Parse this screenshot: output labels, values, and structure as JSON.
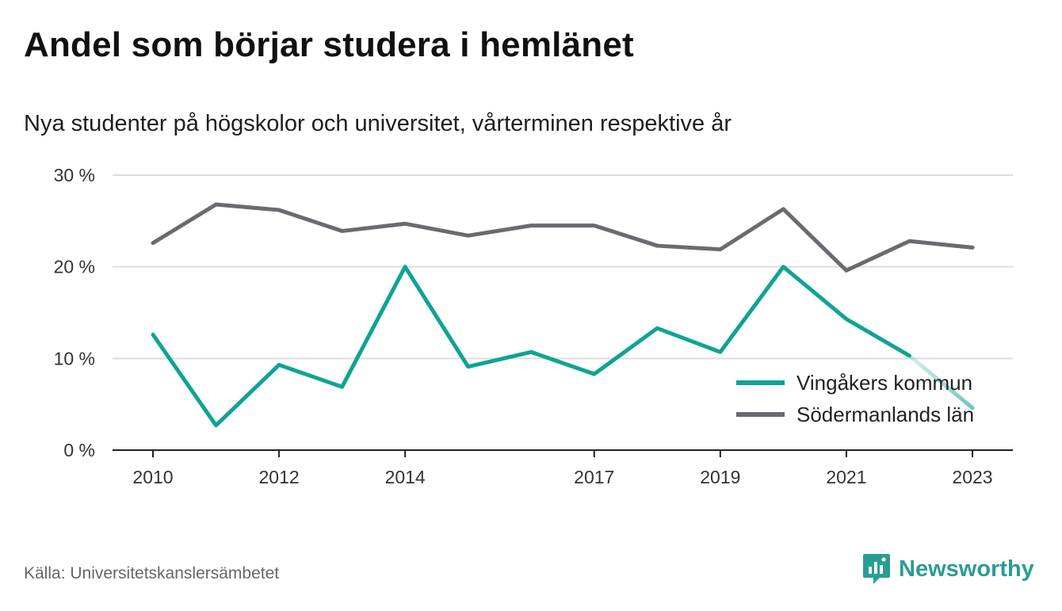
{
  "header": {
    "title": "Andel som börjar studera i hemlänet",
    "subtitle": "Nya studenter på högskolor och universitet, vårterminen respektive år"
  },
  "footer": {
    "source": "Källa: Universitetskanslersämbetet",
    "brand": "Newsworthy",
    "brand_icon": "newsworthy-logo-icon"
  },
  "colors": {
    "vingaker": "#0fa394",
    "sodermanland": "#6b6a70",
    "grid": "#dddddd",
    "axis": "#222222",
    "brand": "#2a9d92"
  },
  "chart_data": {
    "type": "line",
    "x": [
      2010,
      2011,
      2012,
      2013,
      2014,
      2015,
      2016,
      2017,
      2018,
      2019,
      2020,
      2021,
      2022,
      2023
    ],
    "x_tick_labels": [
      "2010",
      "2012",
      "2014",
      "2017",
      "2019",
      "2021",
      "2023"
    ],
    "y_ticks": [
      0,
      10,
      20,
      30
    ],
    "y_tick_labels": [
      "0 %",
      "10 %",
      "20 %",
      "30 %"
    ],
    "ylim": [
      0,
      30
    ],
    "grid": true,
    "legend_position": "bottom-right",
    "series": [
      {
        "name": "Vingåkers kommun",
        "color": "#0fa394",
        "values": [
          12.6,
          2.7,
          9.3,
          6.9,
          20.0,
          9.1,
          10.7,
          8.3,
          13.3,
          10.7,
          20.0,
          14.3,
          10.3,
          4.6
        ],
        "faded_from_index": 12
      },
      {
        "name": "Södermanlands län",
        "color": "#6b6a70",
        "values": [
          22.6,
          26.8,
          26.2,
          23.9,
          24.7,
          23.4,
          24.5,
          24.5,
          22.3,
          21.9,
          26.3,
          19.6,
          22.8,
          22.1
        ]
      }
    ]
  }
}
